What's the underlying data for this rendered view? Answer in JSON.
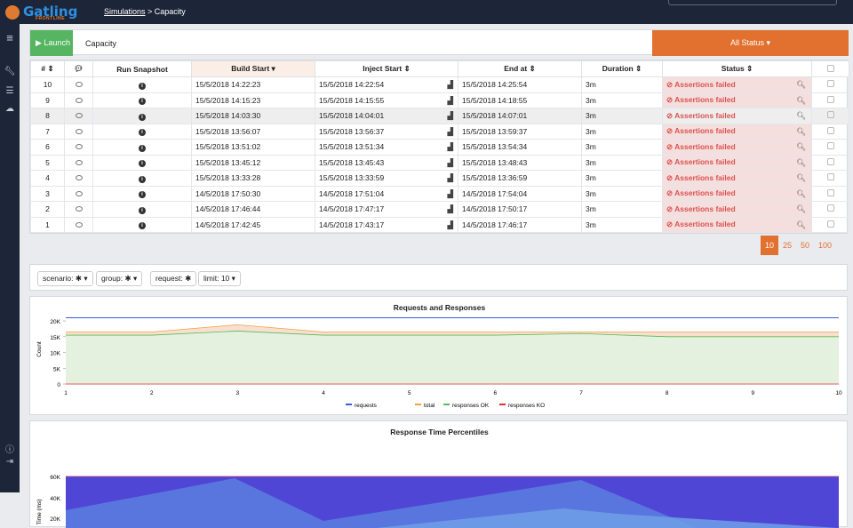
{
  "header": {
    "logo": "Gatling",
    "logo_sub": "FRONTLINE",
    "breadcrumb_link": "Simulations",
    "breadcrumb_rest": " > Capacity"
  },
  "toolbar": {
    "launch_label": "▶ Launch",
    "simulation_name": "Capacity",
    "status_filter": "All Status ▾"
  },
  "table": {
    "headers": [
      "# ⇕",
      "",
      "Run Snapshot",
      "Build Start ▾",
      "Inject Start ⇕",
      "End at ⇕",
      "Duration ⇕",
      "Status ⇕",
      ""
    ],
    "rows": [
      {
        "n": "10",
        "build": "15/5/2018 14:22:23",
        "inject": "15/5/2018 14:22:54",
        "end": "15/5/2018 14:25:54",
        "dur": "3m",
        "status": "⊘ Assertions failed"
      },
      {
        "n": "9",
        "build": "15/5/2018 14:15:23",
        "inject": "15/5/2018 14:15:55",
        "end": "15/5/2018 14:18:55",
        "dur": "3m",
        "status": "⊘ Assertions failed"
      },
      {
        "n": "8",
        "build": "15/5/2018 14:03:30",
        "inject": "15/5/2018 14:04:01",
        "end": "15/5/2018 14:07:01",
        "dur": "3m",
        "status": "⊘ Assertions failed"
      },
      {
        "n": "7",
        "build": "15/5/2018 13:56:07",
        "inject": "15/5/2018 13:56:37",
        "end": "15/5/2018 13:59:37",
        "dur": "3m",
        "status": "⊘ Assertions failed"
      },
      {
        "n": "6",
        "build": "15/5/2018 13:51:02",
        "inject": "15/5/2018 13:51:34",
        "end": "15/5/2018 13:54:34",
        "dur": "3m",
        "status": "⊘ Assertions failed"
      },
      {
        "n": "5",
        "build": "15/5/2018 13:45:12",
        "inject": "15/5/2018 13:45:43",
        "end": "15/5/2018 13:48:43",
        "dur": "3m",
        "status": "⊘ Assertions failed"
      },
      {
        "n": "4",
        "build": "15/5/2018 13:33:28",
        "inject": "15/5/2018 13:33:59",
        "end": "15/5/2018 13:36:59",
        "dur": "3m",
        "status": "⊘ Assertions failed"
      },
      {
        "n": "3",
        "build": "14/5/2018 17:50:30",
        "inject": "14/5/2018 17:51:04",
        "end": "14/5/2018 17:54:04",
        "dur": "3m",
        "status": "⊘ Assertions failed"
      },
      {
        "n": "2",
        "build": "14/5/2018 17:46:44",
        "inject": "14/5/2018 17:47:17",
        "end": "14/5/2018 17:50:17",
        "dur": "3m",
        "status": "⊘ Assertions failed"
      },
      {
        "n": "1",
        "build": "14/5/2018 17:42:45",
        "inject": "14/5/2018 17:43:17",
        "end": "14/5/2018 17:46:17",
        "dur": "3m",
        "status": "⊘ Assertions failed"
      }
    ]
  },
  "pagination": {
    "sizes": [
      "10",
      "25",
      "50",
      "100"
    ],
    "active": "10"
  },
  "filters": {
    "scenario": "scenario: ✱ ▾",
    "group": "group: ✱ ▾",
    "request": "request: ✱",
    "limit": "limit: 10 ▾"
  },
  "chart_data": [
    {
      "type": "area",
      "title": "Requests and Responses",
      "ylabel": "Count",
      "x": [
        1,
        2,
        3,
        4,
        5,
        6,
        7,
        8,
        9,
        10
      ],
      "y_ticks": [
        "0",
        "5K",
        "10K",
        "15K",
        "20K"
      ],
      "ylim": [
        0,
        22000
      ],
      "series": [
        {
          "name": "requests",
          "color": "#3b5bdb",
          "values": [
            21000,
            21000,
            21000,
            21000,
            21000,
            21000,
            21000,
            21000,
            21000,
            21000
          ]
        },
        {
          "name": "total",
          "color": "#f0a040",
          "values": [
            16500,
            16500,
            18800,
            16500,
            16500,
            16500,
            16500,
            16500,
            16500,
            16500
          ]
        },
        {
          "name": "responses OK",
          "color": "#5cb85c",
          "values": [
            15500,
            15500,
            16800,
            15500,
            15500,
            15500,
            16000,
            15000,
            15000,
            15000
          ]
        },
        {
          "name": "responses KO",
          "color": "#e03131",
          "values": [
            0,
            0,
            0,
            0,
            0,
            0,
            0,
            0,
            0,
            0
          ]
        }
      ]
    },
    {
      "type": "area",
      "title": "Response Time Percentiles",
      "ylabel": "Time (ms)",
      "y_ticks": [
        "20K",
        "40K",
        "60K"
      ],
      "ylim": [
        0,
        60000
      ]
    }
  ]
}
